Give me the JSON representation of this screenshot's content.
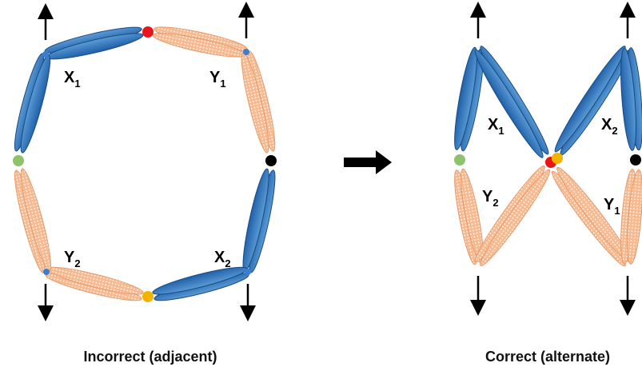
{
  "left": {
    "caption": "Incorrect (adjacent)",
    "labels": [
      {
        "letter": "X",
        "sub": "1"
      },
      {
        "letter": "Y",
        "sub": "1"
      },
      {
        "letter": "X",
        "sub": "2"
      },
      {
        "letter": "Y",
        "sub": "2"
      }
    ]
  },
  "right": {
    "caption": "Correct (alternate)",
    "labels": [
      {
        "letter": "X",
        "sub": "1"
      },
      {
        "letter": "X",
        "sub": "2"
      },
      {
        "letter": "Y",
        "sub": "2"
      },
      {
        "letter": "Y",
        "sub": "1"
      }
    ]
  }
}
